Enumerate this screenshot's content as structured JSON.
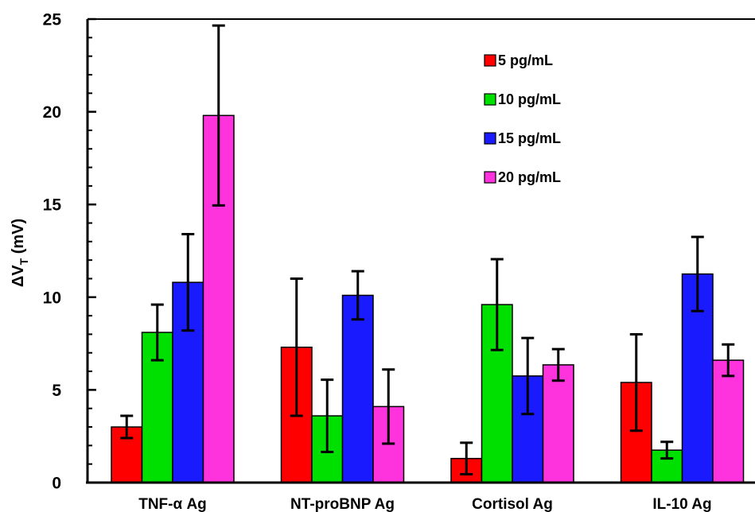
{
  "chart_data": {
    "type": "bar",
    "title": "",
    "xlabel": "",
    "ylabel_main": "ΔV",
    "ylabel_sub": "T",
    "ylabel_unit": " (mV)",
    "ylim": [
      0,
      25
    ],
    "yticks": [
      0,
      5,
      10,
      15,
      20,
      25
    ],
    "grid": false,
    "legend_position": "top-right",
    "categories": [
      "TNF-α Ag",
      "NT-proBNP Ag",
      "Cortisol Ag",
      "IL-10 Ag"
    ],
    "series": [
      {
        "name": "5 pg/mL",
        "color": "#ff0000",
        "values": [
          3.0,
          7.3,
          1.3,
          5.4
        ],
        "errors": [
          0.6,
          3.7,
          0.85,
          2.6
        ]
      },
      {
        "name": "10 pg/mL",
        "color": "#00e000",
        "values": [
          8.1,
          3.6,
          9.6,
          1.75
        ],
        "errors": [
          1.5,
          1.95,
          2.45,
          0.45
        ]
      },
      {
        "name": "15 pg/mL",
        "color": "#1a1aff",
        "values": [
          10.8,
          10.1,
          5.75,
          11.25
        ],
        "errors": [
          2.6,
          1.3,
          2.05,
          2.0
        ]
      },
      {
        "name": "20 pg/mL",
        "color": "#ff33dd",
        "values": [
          19.8,
          4.1,
          6.35,
          6.6
        ],
        "errors": [
          4.85,
          2.0,
          0.85,
          0.85
        ]
      }
    ]
  }
}
